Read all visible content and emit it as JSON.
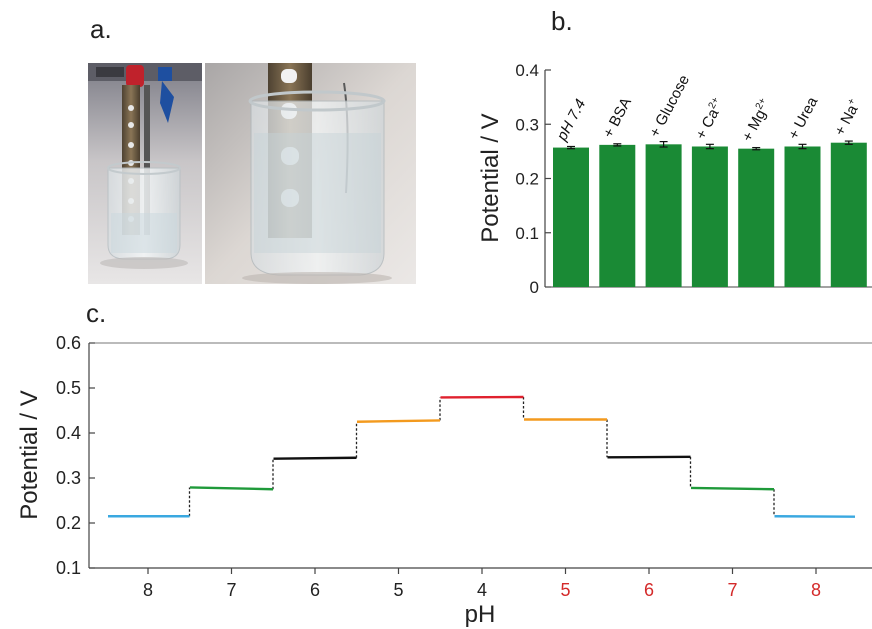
{
  "panels": {
    "a": "a.",
    "b": "b.",
    "c": "c."
  },
  "photo": {
    "left_description_icon": "beaker-with-electrode-clipped",
    "right_description_icon": "beaker-closeup-electrode",
    "colors": {
      "background_top": "#8a8a94",
      "glass": "#e9eef0",
      "metal": "#6b5a40",
      "clip_red": "#c0222c",
      "clip_blue": "#1e4fa0"
    }
  },
  "chart_data": [
    {
      "type": "bar",
      "categories": [
        "pH 7.4",
        "+ BSA",
        "+ Glucose",
        "+ Ca2+",
        "+ Mg2+",
        "+ Urea",
        "+ Na+"
      ],
      "category_labels": [
        {
          "base": "pH 7.4",
          "sup": ""
        },
        {
          "base": "+ BSA",
          "sup": ""
        },
        {
          "base": "+ Glucose",
          "sup": ""
        },
        {
          "base": "+ Ca",
          "sup": "2+"
        },
        {
          "base": "+ Mg",
          "sup": "2+"
        },
        {
          "base": "+ Urea",
          "sup": ""
        },
        {
          "base": "+ Na",
          "sup": "+"
        }
      ],
      "values": [
        0.257,
        0.262,
        0.263,
        0.259,
        0.255,
        0.259,
        0.266
      ],
      "errors": [
        0.002,
        0.002,
        0.005,
        0.004,
        0.002,
        0.004,
        0.003
      ],
      "ylabel": "Potential / V",
      "ylim": [
        0,
        0.4
      ],
      "yticks": [
        "0",
        "0.1",
        "0.2",
        "0.3",
        "0.4"
      ],
      "ytick_values": [
        0,
        0.1,
        0.2,
        0.3,
        0.4
      ],
      "bar_color": "#1a8a35"
    },
    {
      "type": "line",
      "xlabel": "pH",
      "ylabel": "Potential / V",
      "ylim": [
        0.1,
        0.6
      ],
      "yticks": [
        "0.1",
        "0.2",
        "0.3",
        "0.4",
        "0.5",
        "0.6"
      ],
      "ytick_values": [
        0.1,
        0.2,
        0.3,
        0.4,
        0.5,
        0.6
      ],
      "xticks": [
        {
          "label": "8",
          "color": "#222222"
        },
        {
          "label": "7",
          "color": "#222222"
        },
        {
          "label": "6",
          "color": "#222222"
        },
        {
          "label": "5",
          "color": "#222222"
        },
        {
          "label": "4",
          "color": "#222222"
        },
        {
          "label": "5",
          "color": "#d42a2a"
        },
        {
          "label": "6",
          "color": "#d42a2a"
        },
        {
          "label": "7",
          "color": "#d42a2a"
        },
        {
          "label": "8",
          "color": "#d42a2a"
        }
      ],
      "steps": [
        {
          "pH": 8,
          "y_start": 0.215,
          "y_end": 0.215,
          "color": "#3aa8e0"
        },
        {
          "pH": 7,
          "y_start": 0.279,
          "y_end": 0.275,
          "color": "#1f9a3a"
        },
        {
          "pH": 6,
          "y_start": 0.343,
          "y_end": 0.345,
          "color": "#111111"
        },
        {
          "pH": 5,
          "y_start": 0.425,
          "y_end": 0.428,
          "color": "#f39a1e"
        },
        {
          "pH": 4,
          "y_start": 0.479,
          "y_end": 0.48,
          "color": "#e0212e"
        },
        {
          "pH": 5,
          "y_start": 0.43,
          "y_end": 0.43,
          "color": "#f39a1e"
        },
        {
          "pH": 6,
          "y_start": 0.346,
          "y_end": 0.347,
          "color": "#111111"
        },
        {
          "pH": 7,
          "y_start": 0.278,
          "y_end": 0.275,
          "color": "#1f9a3a"
        },
        {
          "pH": 8,
          "y_start": 0.215,
          "y_end": 0.214,
          "color": "#3aa8e0"
        }
      ]
    }
  ]
}
